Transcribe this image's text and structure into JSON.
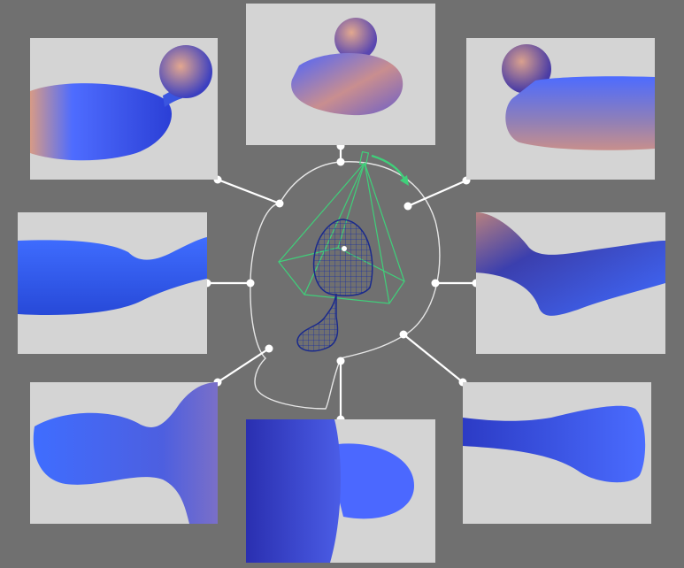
{
  "figure": {
    "background_color": "#707070",
    "panel_color": "#d4d4d4",
    "connector_color": "#ffffff",
    "path_color": "#e6e6e6",
    "frustum_color": "#3fd07a",
    "mesh_color": "#1a2a8c",
    "surface_colors": [
      "#3d6fff",
      "#2b3fd6",
      "#d79a86"
    ],
    "center_object": "wireframe-mesh-with-camera-frustum",
    "views": [
      {
        "id": "top-left",
        "icon": "blob-view-icon"
      },
      {
        "id": "top-center",
        "icon": "blob-view-icon"
      },
      {
        "id": "top-right",
        "icon": "blob-view-icon"
      },
      {
        "id": "middle-left",
        "icon": "blob-view-icon"
      },
      {
        "id": "middle-right",
        "icon": "blob-view-icon"
      },
      {
        "id": "bottom-left",
        "icon": "blob-view-icon"
      },
      {
        "id": "bottom-center",
        "icon": "blob-view-icon"
      },
      {
        "id": "bottom-right",
        "icon": "blob-view-icon"
      }
    ]
  }
}
